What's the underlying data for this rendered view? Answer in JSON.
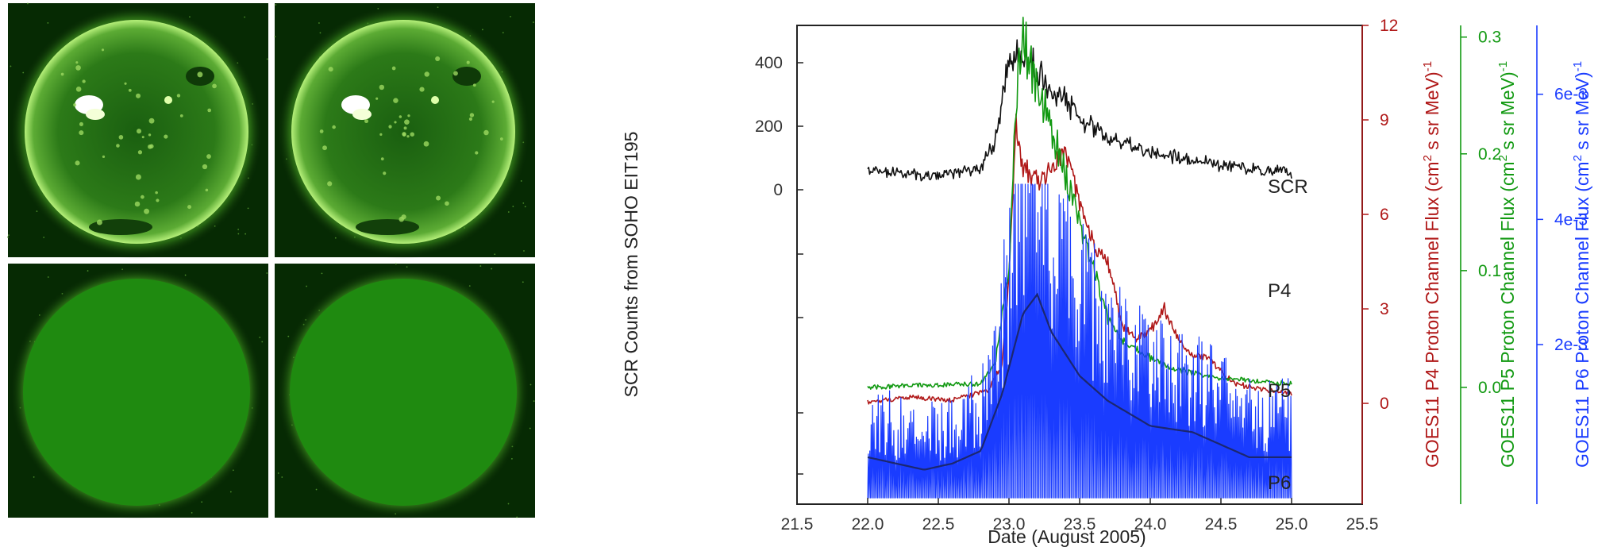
{
  "colors": {
    "scr": "#111111",
    "p4": "#b01818",
    "p5": "#119911",
    "p6": "#1a3cff",
    "p6_smooth": "#1b2770",
    "sun_green": "#1f8a10"
  },
  "images": {
    "panels": [
      {
        "name": "eit195-frame-1",
        "kind": "solar-disk-raw"
      },
      {
        "name": "eit195-frame-2",
        "kind": "solar-disk-raw"
      },
      {
        "name": "eit195-frame-3",
        "kind": "solar-disk-masked"
      },
      {
        "name": "eit195-frame-4",
        "kind": "solar-disk-masked"
      }
    ]
  },
  "chart_data": {
    "type": "line",
    "xlabel": "Date (August 2005)",
    "xlim": [
      21.5,
      25.5
    ],
    "x_ticks": [
      "21.5",
      "22.0",
      "22.5",
      "23.0",
      "23.5",
      "24.0",
      "24.5",
      "25.0",
      "25.5"
    ],
    "axes": {
      "left": {
        "label": "SCR Counts from SOHO EIT195",
        "tick_values": [
          0,
          200,
          400
        ],
        "tick_labels": [
          "0",
          "200",
          "400"
        ]
      },
      "right_p4": {
        "label_main": "GOES11 P4 Proton Channel Flux (cm",
        "label_tail": " s sr MeV)",
        "sup1": "2",
        "sup2": "-1",
        "ylim": [
          -3.2,
          12
        ],
        "tick_values": [
          0,
          3,
          6,
          9,
          12
        ],
        "tick_labels": [
          "0",
          "3",
          "6",
          "9",
          "12"
        ]
      },
      "right_p5": {
        "label_main": "GOES11 P5 Proton Channel Flux (cm",
        "label_tail": " s sr MeV)",
        "sup1": "2",
        "sup2": "-1",
        "ylim": [
          -0.1,
          0.31
        ],
        "tick_values": [
          0.0,
          0.1,
          0.2,
          0.3
        ],
        "tick_labels": [
          "0.0",
          "0.1",
          "0.2",
          "0.3"
        ]
      },
      "right_p6": {
        "label_main": "GOES11 P6 Proton Channel Flux (cm",
        "label_tail": " s sr MeV)",
        "sup1": "2",
        "sup2": "-1",
        "ylim": [
          -0.00055,
          0.0071
        ],
        "tick_values": [
          0.002,
          0.004,
          0.006
        ],
        "tick_labels": [
          "2e-3",
          "4e-3",
          "6e-3"
        ]
      }
    },
    "series": [
      {
        "name": "SCR",
        "axis": "left",
        "x": [
          22.0,
          22.2,
          22.4,
          22.6,
          22.8,
          22.9,
          22.95,
          23.0,
          23.08,
          23.2,
          23.3,
          23.4,
          23.5,
          23.7,
          23.9,
          24.1,
          24.3,
          24.5,
          24.7,
          25.0
        ],
        "values": [
          60,
          50,
          45,
          50,
          70,
          150,
          290,
          410,
          440,
          370,
          330,
          280,
          220,
          170,
          130,
          110,
          95,
          80,
          65,
          55
        ]
      },
      {
        "name": "P4",
        "axis": "right_p4",
        "x": [
          22.0,
          22.3,
          22.6,
          22.85,
          22.95,
          23.0,
          23.05,
          23.1,
          23.2,
          23.3,
          23.4,
          23.5,
          23.6,
          23.7,
          23.8,
          23.9,
          24.0,
          24.1,
          24.2,
          24.3,
          24.4,
          24.6,
          25.0
        ],
        "values": [
          0.05,
          0.2,
          0.1,
          0.4,
          1.2,
          4.0,
          9.0,
          7.5,
          7.0,
          7.5,
          8.0,
          6.5,
          5.0,
          4.5,
          2.5,
          2.0,
          2.3,
          3.0,
          2.0,
          1.5,
          1.5,
          0.6,
          0.3
        ]
      },
      {
        "name": "P5",
        "axis": "right_p5",
        "x": [
          22.0,
          22.4,
          22.8,
          22.9,
          23.0,
          23.05,
          23.1,
          23.2,
          23.3,
          23.4,
          23.5,
          23.6,
          23.7,
          23.8,
          24.0,
          24.2,
          24.5,
          25.0
        ],
        "values": [
          0.0,
          0.002,
          0.003,
          0.02,
          0.1,
          0.25,
          0.3,
          0.26,
          0.22,
          0.18,
          0.14,
          0.1,
          0.06,
          0.04,
          0.025,
          0.015,
          0.008,
          0.003
        ]
      },
      {
        "name": "P6",
        "axis": "right_p6",
        "x": [
          22.0,
          22.2,
          22.4,
          22.6,
          22.8,
          22.95,
          23.1,
          23.2,
          23.3,
          23.5,
          23.7,
          24.0,
          24.3,
          24.5,
          24.7,
          25.0
        ],
        "values": [
          0.0002,
          0.0001,
          0.0,
          0.0001,
          0.0003,
          0.0012,
          0.0025,
          0.0028,
          0.0022,
          0.0015,
          0.0011,
          0.0007,
          0.0006,
          0.0004,
          0.0002,
          0.0002
        ]
      }
    ]
  }
}
